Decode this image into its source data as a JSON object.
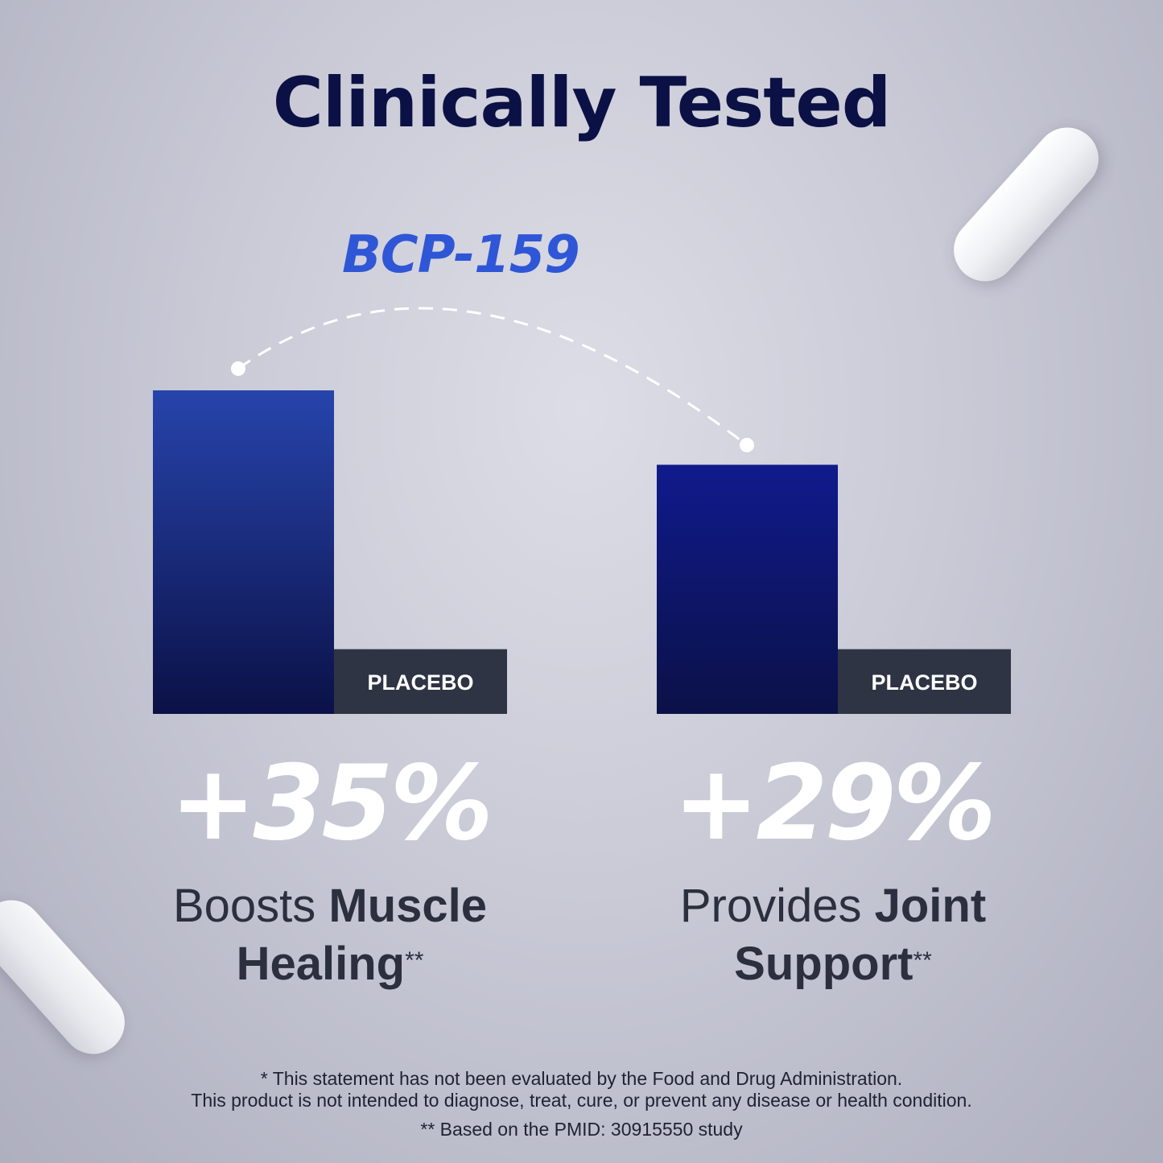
{
  "title": "Clinically Tested",
  "product_label": "BCP-159",
  "chart_data": {
    "type": "bar",
    "groups": [
      {
        "bars": [
          {
            "label": "",
            "value": 100,
            "color": "#1e2f96"
          },
          {
            "label": "PLACEBO",
            "value": 20,
            "color": "#2f3444"
          }
        ],
        "stat": "+35%",
        "desc_light": "Boosts",
        "desc_bold_1": "Muscle",
        "desc_bold_2": "Healing",
        "desc_mark": "**"
      },
      {
        "bars": [
          {
            "label": "",
            "value": 77,
            "color": "#13197a"
          },
          {
            "label": "PLACEBO",
            "value": 20,
            "color": "#2f3444"
          }
        ],
        "stat": "+29%",
        "desc_light": "Provides",
        "desc_bold_1": "Joint",
        "desc_bold_2": "Support",
        "desc_mark": "**"
      }
    ],
    "ylim": [
      0,
      100
    ]
  },
  "colors": {
    "title": "#0b1145",
    "product_label": "#2f56d6",
    "placebo_bar": "#2f3444",
    "text_dark": "#2b2f3e"
  },
  "footer": {
    "line1": "* This statement has not been evaluated by the Food and Drug Administration.",
    "line2": "This product is not intended to diagnose, treat, cure, or prevent any disease or health condition.",
    "line3": "** Based on the PMID: 30915550 study"
  },
  "decorations": [
    "capsule-pill-icon",
    "capsule-pill-icon"
  ]
}
